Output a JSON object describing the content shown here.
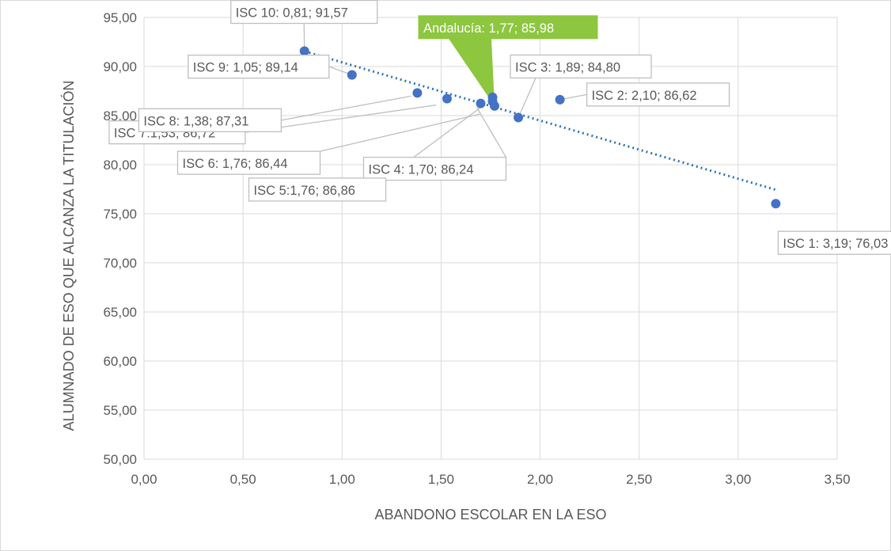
{
  "chart_data": {
    "type": "scatter",
    "title": "",
    "xlabel": "ABANDONO ESCOLAR EN LA ESO",
    "ylabel": "ALUMNADO DE ESO QUE ALCANZA LA TITULACIÓN",
    "xlim": [
      0,
      3.5
    ],
    "ylim": [
      50,
      95
    ],
    "x_ticks": [
      "0,00",
      "0,50",
      "1,00",
      "1,50",
      "2,00",
      "2,50",
      "3,00",
      "3,50"
    ],
    "y_ticks": [
      "50,00",
      "55,00",
      "60,00",
      "65,00",
      "70,00",
      "75,00",
      "80,00",
      "85,00",
      "90,00",
      "95,00"
    ],
    "grid": true,
    "trendline": {
      "type": "linear",
      "style": "dotted",
      "x_from": 0.81,
      "x_to": 3.19
    },
    "points": [
      {
        "x": 3.19,
        "y": 76.03,
        "label": "ISC 1: 3,19; 76,03"
      },
      {
        "x": 2.1,
        "y": 86.62,
        "label": "ISC 2: 2,10; 86,62"
      },
      {
        "x": 1.89,
        "y": 84.8,
        "label": "ISC 3: 1,89; 84,80"
      },
      {
        "x": 1.7,
        "y": 86.24,
        "label": "ISC 4: 1,70; 86,24"
      },
      {
        "x": 1.76,
        "y": 86.86,
        "label": "ISC 5:1,76; 86,86"
      },
      {
        "x": 1.76,
        "y": 86.44,
        "label": "ISC 6: 1,76; 86,44"
      },
      {
        "x": 1.53,
        "y": 86.72,
        "label": "ISC 7:1,53; 86,72"
      },
      {
        "x": 1.38,
        "y": 87.31,
        "label": "ISC 8: 1,38; 87,31"
      },
      {
        "x": 1.05,
        "y": 89.14,
        "label": "ISC 9: 1,05; 89,14"
      },
      {
        "x": 0.81,
        "y": 91.57,
        "label": "ISC 10: 0,81; 91,57"
      },
      {
        "x": 1.77,
        "y": 85.98,
        "label": "Andalucía: 1,77; 85,98",
        "highlight": true
      }
    ],
    "colors": {
      "point": "#4472c4",
      "trendline": "#2e75b6",
      "highlight": "#8dc63f",
      "gridline": "#d9d9d9"
    }
  }
}
